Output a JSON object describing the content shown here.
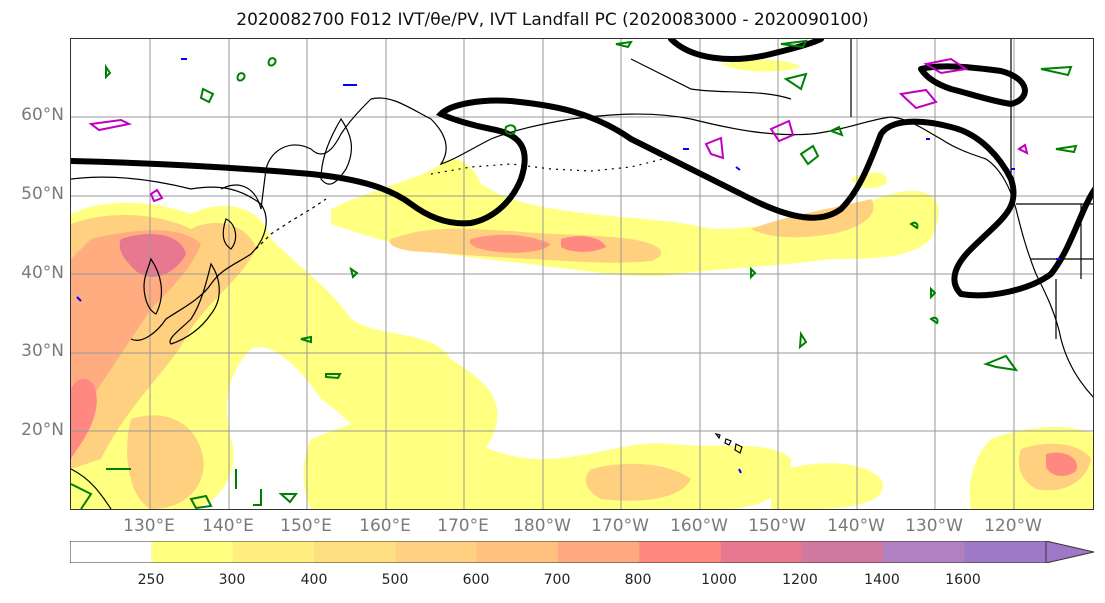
{
  "title": "2020082700 F012 IVT/θe/PV, IVT Landfall PC (2020083000 - 2020090100)",
  "map": {
    "lat_labels": [
      "60°N",
      "50°N",
      "40°N",
      "30°N",
      "20°N"
    ],
    "lon_labels": [
      "130°E",
      "140°E",
      "150°E",
      "160°E",
      "170°E",
      "180°W",
      "170°W",
      "160°W",
      "150°W",
      "140°W",
      "130°W",
      "120°W"
    ],
    "colors": {
      "land_outline": "#000000",
      "jet_contour": "#000000",
      "theta_e_contour": "#008000",
      "pv_contour": "#c000c0",
      "blue_contour": "#0000ff",
      "gridline": "#999999"
    }
  },
  "colorbar": {
    "ticks": [
      "250",
      "300",
      "400",
      "500",
      "600",
      "700",
      "800",
      "1000",
      "1200",
      "1400",
      "1600"
    ],
    "colors": [
      "#ffffff",
      "#ffff80",
      "#ffef80",
      "#ffe080",
      "#ffd080",
      "#ffc080",
      "#ffa880",
      "#ff8880",
      "#e87890",
      "#d078a0",
      "#b080c0",
      "#a078c8"
    ],
    "extend": "max"
  }
}
